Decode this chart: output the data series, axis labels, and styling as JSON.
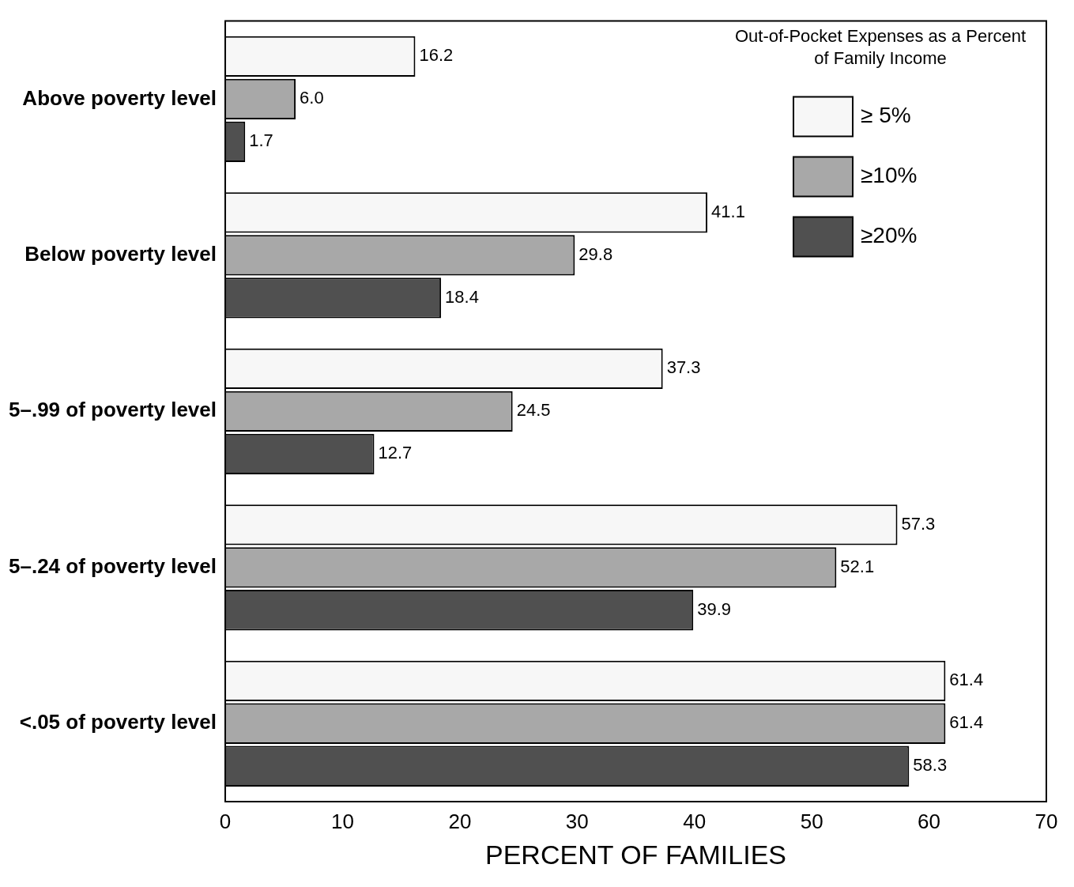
{
  "chart_data": {
    "type": "bar",
    "orientation": "horizontal",
    "xlabel": "PERCENT OF FAMILIES",
    "legend_title": "Out-of-Pocket Expenses as a Percent of Family Income",
    "categories": [
      "Above poverty level",
      "Below poverty level",
      "5–.99 of poverty level",
      "5–.24 of poverty level",
      "<.05 of poverty level"
    ],
    "series": [
      {
        "name": "≥ 5%",
        "color": "#f7f7f7",
        "values": [
          16.2,
          41.1,
          37.3,
          57.3,
          61.4
        ],
        "value_labels": [
          "16.2",
          "41.1",
          "37.3",
          "57.3",
          "61.4"
        ]
      },
      {
        "name": "≥10%",
        "color": "#a8a8a8",
        "values": [
          6.0,
          29.8,
          24.5,
          52.1,
          61.4
        ],
        "value_labels": [
          "6.0",
          "29.8",
          "24.5",
          "52.1",
          "61.4"
        ]
      },
      {
        "name": "≥20%",
        "color": "#505050",
        "values": [
          1.7,
          18.4,
          12.7,
          39.9,
          58.3
        ],
        "value_labels": [
          "1.7",
          "18.4",
          "12.7",
          "39.9",
          "58.3"
        ]
      }
    ],
    "xlim": [
      0,
      70
    ],
    "xticks": [
      0,
      10,
      20,
      30,
      40,
      50,
      60,
      70
    ],
    "grid": false,
    "legend": "top right"
  }
}
